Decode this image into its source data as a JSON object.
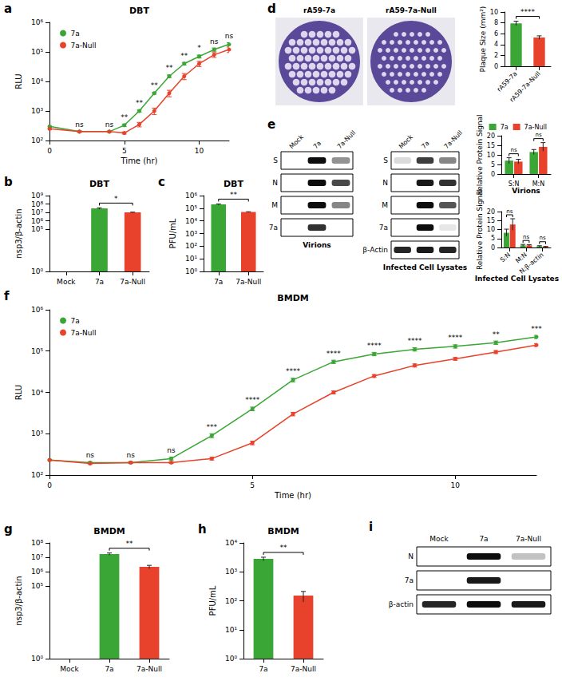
{
  "chart_data": [
    {
      "panel": "a",
      "type": "line",
      "title": "DBT",
      "x_label": "Time (hr)",
      "y_label": "RLU",
      "log": "y",
      "legend": "top-left",
      "x": [
        0,
        2,
        4,
        5,
        6,
        7,
        8,
        9,
        10,
        11,
        12
      ],
      "xlim": [
        0,
        12
      ],
      "xticks": [
        0,
        5,
        10
      ],
      "ylim": [
        100,
        1000000
      ],
      "yticks": [
        {
          "value": 100,
          "label": "10²"
        },
        {
          "value": 1000,
          "label": "10³"
        },
        {
          "value": 10000,
          "label": "10⁴"
        },
        {
          "value": 100000,
          "label": "10⁵"
        },
        {
          "value": 1000000,
          "label": "10⁶"
        }
      ],
      "series": [
        {
          "name": "7a",
          "color": "#3aa635",
          "marker": "circle",
          "values": [
            300,
            200,
            200,
            330,
            1000,
            4000,
            15000,
            40000,
            70000,
            120000,
            180000
          ],
          "errors": [
            20,
            10,
            10,
            30,
            80,
            300,
            1500,
            4000,
            8000,
            15000,
            25000
          ]
        },
        {
          "name": "7a-Null",
          "color": "#e8412c",
          "marker": "circle",
          "values": [
            250,
            200,
            200,
            180,
            350,
            1000,
            4000,
            15000,
            40000,
            80000,
            120000
          ],
          "errors": [
            20,
            10,
            10,
            15,
            60,
            250,
            1000,
            3500,
            8000,
            15000,
            25000
          ]
        }
      ],
      "significance": {
        "x": [
          2,
          4,
          5,
          6,
          7,
          8,
          9,
          10,
          11,
          12
        ],
        "labels": [
          "ns",
          "ns",
          "**",
          "**",
          "**",
          "**",
          "**",
          "*",
          "ns",
          "ns"
        ]
      }
    },
    {
      "panel": "b",
      "type": "bar",
      "title": "DBT",
      "y_label": "nsp3/β-actin",
      "log": "y",
      "categories": [
        "Mock",
        "7a",
        "7a-Null"
      ],
      "values": [
        1,
        30000000,
        10000000
      ],
      "errors": [
        0,
        5000000,
        1000000
      ],
      "colors": [
        "#3aa635",
        "#3aa635",
        "#e8412c"
      ],
      "ylim": [
        1,
        1000000000
      ],
      "yticks": [
        {
          "value": 1,
          "label": "10⁰"
        },
        {
          "value": 100000,
          "label": "10⁵"
        },
        {
          "value": 1000000,
          "label": "10⁶"
        },
        {
          "value": 10000000,
          "label": "10⁷"
        },
        {
          "value": 100000000,
          "label": "10⁸"
        },
        {
          "value": 1000000000,
          "label": "10⁹"
        }
      ],
      "significance": {
        "between": [
          "7a",
          "7a-Null"
        ],
        "label": "*"
      }
    },
    {
      "panel": "c",
      "type": "bar",
      "title": "DBT",
      "y_label": "PFU/mL",
      "log": "y",
      "categories": [
        "7a",
        "7a-Null"
      ],
      "values": [
        200000,
        50000
      ],
      "errors": [
        20000,
        3000
      ],
      "colors": [
        "#3aa635",
        "#e8412c"
      ],
      "ylim": [
        1,
        1000000
      ],
      "yticks": [
        {
          "value": 1,
          "label": "10⁰"
        },
        {
          "value": 10,
          "label": "10¹"
        },
        {
          "value": 100,
          "label": "10²"
        },
        {
          "value": 1000,
          "label": "10³"
        },
        {
          "value": 10000,
          "label": "10⁴"
        },
        {
          "value": 100000,
          "label": "10⁵"
        },
        {
          "value": 1000000,
          "label": "10⁶"
        }
      ],
      "significance": {
        "between": [
          "7a",
          "7a-Null"
        ],
        "label": "**"
      }
    },
    {
      "type": "bar",
      "y_label": "Plaque Size (mm²)",
      "categories": [
        "rA59-7a",
        "rA59-7a-Null"
      ],
      "values": [
        7.9,
        5.3
      ],
      "errors": [
        0.4,
        0.3
      ],
      "colors": [
        "#3aa635",
        "#e8412c"
      ],
      "ylim": [
        0,
        10
      ],
      "yticks": [
        0,
        2,
        4,
        6,
        8,
        10
      ],
      "significance": {
        "between": [
          "rA59-7a",
          "rA59-7a-Null"
        ],
        "label": "****"
      }
    },
    {
      "type": "bar",
      "title": "Virions",
      "y_label": "Relative Protein Signal",
      "legend": "top-right",
      "categories": [
        "S:N",
        "M:N"
      ],
      "series": [
        {
          "name": "7a",
          "color": "#3aa635",
          "values": [
            7.0,
            11.5
          ],
          "errors": [
            1.5,
            1.3
          ]
        },
        {
          "name": "7a-Null",
          "color": "#e8412c",
          "values": [
            6.5,
            14.2
          ],
          "errors": [
            1.2,
            2.2
          ]
        }
      ],
      "ylim": [
        0,
        20
      ],
      "yticks": [
        0,
        5,
        10,
        15,
        20
      ],
      "significance": [
        "ns",
        "ns"
      ]
    },
    {
      "type": "bar",
      "title": "Infected Cell Lysates",
      "y_label": "Relative Protein Signal",
      "categories": [
        "S:N",
        "M:N",
        "N:β-actin"
      ],
      "series": [
        {
          "name": "7a",
          "color": "#3aa635",
          "values": [
            8.2,
            1.2,
            0.7
          ],
          "errors": [
            2.0,
            0.5,
            0.3
          ]
        },
        {
          "name": "7a-Null",
          "color": "#e8412c",
          "values": [
            12.8,
            1.2,
            0.4
          ],
          "errors": [
            3.2,
            0.4,
            0.2
          ]
        }
      ],
      "ylim": [
        0,
        20
      ],
      "yticks": [
        0,
        5,
        10,
        15,
        20
      ],
      "significance": [
        "ns",
        "ns",
        "ns"
      ]
    },
    {
      "panel": "f",
      "type": "line",
      "title": "BMDM",
      "x_label": "Time (hr)",
      "y_label": "RLU",
      "log": "y",
      "legend": "top-left",
      "x": [
        0,
        1,
        2,
        3,
        4,
        5,
        6,
        7,
        8,
        9,
        10,
        11,
        12
      ],
      "xlim": [
        0,
        12
      ],
      "xticks": [
        0,
        5,
        10
      ],
      "ylim": [
        100,
        1000000
      ],
      "yticks": [
        {
          "value": 100,
          "label": "10²"
        },
        {
          "value": 1000,
          "label": "10³"
        },
        {
          "value": 10000,
          "label": "10⁴"
        },
        {
          "value": 100000,
          "label": "10⁵"
        },
        {
          "value": 1000000,
          "label": "10⁶"
        }
      ],
      "series": [
        {
          "name": "7a",
          "color": "#3aa635",
          "marker": "circle",
          "values": [
            230,
            200,
            200,
            250,
            900,
            4000,
            20000,
            55000,
            85000,
            110000,
            130000,
            160000,
            220000
          ],
          "errors": [
            10,
            10,
            10,
            20,
            100,
            400,
            2000,
            5000,
            8000,
            10000,
            12000,
            15000,
            20000
          ]
        },
        {
          "name": "7a-Null",
          "color": "#e8412c",
          "marker": "circle",
          "values": [
            230,
            190,
            200,
            200,
            250,
            600,
            3000,
            10000,
            25000,
            45000,
            65000,
            95000,
            140000
          ],
          "errors": [
            10,
            10,
            10,
            10,
            20,
            60,
            300,
            800,
            2000,
            4000,
            5000,
            8000,
            12000
          ]
        }
      ],
      "significance": {
        "x": [
          1,
          2,
          3,
          4,
          5,
          6,
          7,
          8,
          9,
          10,
          11,
          12
        ],
        "labels": [
          "ns",
          "ns",
          "ns",
          "***",
          "****",
          "****",
          "****",
          "****",
          "****",
          "****",
          "**",
          "***"
        ]
      }
    },
    {
      "panel": "g",
      "type": "bar",
      "title": "BMDM",
      "y_label": "nsp3/β-actin",
      "log": "y",
      "categories": [
        "Mock",
        "7a",
        "7a-Null"
      ],
      "values": [
        1,
        17000000,
        2200000
      ],
      "errors": [
        0,
        3000000,
        600000
      ],
      "colors": [
        "#3aa635",
        "#3aa635",
        "#e8412c"
      ],
      "ylim": [
        1,
        100000000
      ],
      "yticks": [
        {
          "value": 1,
          "label": "10⁰"
        },
        {
          "value": 100000,
          "label": "10⁵"
        },
        {
          "value": 1000000,
          "label": "10⁶"
        },
        {
          "value": 10000000,
          "label": "10⁷"
        },
        {
          "value": 100000000,
          "label": "10⁸"
        }
      ],
      "significance": {
        "between": [
          "7a",
          "7a-Null"
        ],
        "label": "**"
      }
    },
    {
      "panel": "h",
      "type": "bar",
      "title": "BMDM",
      "y_label": "PFU/mL",
      "log": "y",
      "categories": [
        "7a",
        "7a-Null"
      ],
      "values": [
        2800,
        150
      ],
      "errors": [
        400,
        60
      ],
      "colors": [
        "#3aa635",
        "#e8412c"
      ],
      "ylim": [
        1,
        10000
      ],
      "yticks": [
        {
          "value": 1,
          "label": "10⁰"
        },
        {
          "value": 10,
          "label": "10¹"
        },
        {
          "value": 100,
          "label": "10²"
        },
        {
          "value": 1000,
          "label": "10³"
        },
        {
          "value": 10000,
          "label": "10⁴"
        }
      ],
      "significance": {
        "between": [
          "7a",
          "7a-Null"
        ],
        "label": "**"
      }
    }
  ],
  "images": {
    "plaques": {
      "panel": "d",
      "wells": [
        "rA59-7a",
        "rA59-7a-Null"
      ]
    },
    "blots": [
      {
        "panel": "e",
        "title": "Virions",
        "lanes": [
          "Mock",
          "7a",
          "7a-Null"
        ],
        "rows": [
          {
            "label": "S",
            "intensity": [
              0,
              1,
              0.45
            ]
          },
          {
            "label": "N",
            "intensity": [
              0,
              1,
              0.75
            ]
          },
          {
            "label": "M",
            "intensity": [
              0,
              1,
              0.5
            ]
          },
          {
            "label": "7a",
            "intensity": [
              0,
              0.85,
              0
            ]
          }
        ]
      },
      {
        "title": "Infected Cell Lysates",
        "lanes": [
          "Mock",
          "7a",
          "7a-Null"
        ],
        "rows": [
          {
            "label": "S",
            "intensity": [
              0.15,
              0.8,
              0.5
            ]
          },
          {
            "label": "N",
            "intensity": [
              0,
              0.95,
              0.85
            ]
          },
          {
            "label": "M",
            "intensity": [
              0,
              1,
              0.7
            ]
          },
          {
            "label": "7a",
            "intensity": [
              0,
              1,
              0.1
            ]
          },
          {
            "label": "β-Actin",
            "intensity": [
              0.9,
              0.95,
              0.9
            ]
          }
        ]
      },
      {
        "panel": "i",
        "lanes": [
          "Mock",
          "7a",
          "7a-Null"
        ],
        "rows": [
          {
            "label": "N",
            "intensity": [
              0,
              1,
              0.25
            ]
          },
          {
            "label": "7a",
            "intensity": [
              0,
              0.95,
              0
            ]
          },
          {
            "label": "β-actin",
            "intensity": [
              0.9,
              1,
              0.95
            ]
          }
        ]
      }
    ]
  }
}
